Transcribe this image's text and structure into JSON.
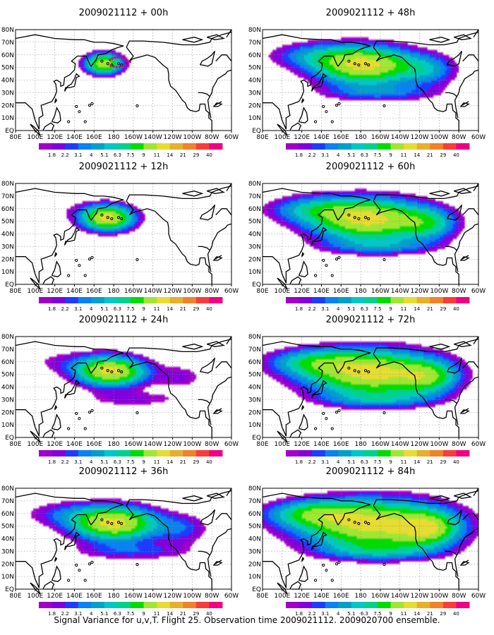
{
  "figure": {
    "caption": "Signal Variance for u,v,T. Flight 25. Observation time 2009021112. 2009020700 ensemble."
  },
  "chart_data": {
    "type": "heatmap",
    "x_ticks": [
      "80E",
      "100E",
      "120E",
      "140E",
      "160E",
      "180",
      "160W",
      "140W",
      "120W",
      "100W",
      "80W",
      "60W"
    ],
    "y_ticks": [
      "EQ",
      "10N",
      "20N",
      "30N",
      "40N",
      "50N",
      "60N",
      "70N",
      "80N"
    ],
    "colorbar": {
      "labels": [
        "1.8",
        "2.2",
        "3.1",
        "4",
        "5.1",
        "6.3",
        "7.5",
        "9",
        "11",
        "14",
        "21",
        "29",
        "40"
      ],
      "colors": [
        "#a000c8",
        "#8200dc",
        "#1e3cff",
        "#0a82f0",
        "#00a0c8",
        "#00c8c8",
        "#00d28c",
        "#00dc00",
        "#a0e632",
        "#e6dc32",
        "#e6af2d",
        "#f08228",
        "#fa3c3c",
        "#f00082"
      ]
    },
    "panels": [
      {
        "title": "2009021112 + 00h",
        "lead_hours": 0,
        "colorbar_labels": [
          "1.8",
          "2.2",
          "3.1",
          "4",
          "5.1",
          "6.3",
          "7.5",
          "9",
          "11",
          "14",
          "21",
          "29",
          "40"
        ]
      },
      {
        "title": "2009021112 + 48h",
        "lead_hours": 48,
        "colorbar_labels": [
          "1.8",
          "2.2",
          "3.1",
          "4",
          "5.1",
          "6.3",
          "7.5",
          "9",
          "11",
          "14",
          "21",
          "29",
          "40"
        ]
      },
      {
        "title": "2009021112 + 12h",
        "lead_hours": 12,
        "colorbar_labels": [
          "1.8",
          "2.2",
          "3.1",
          "4",
          "5.1",
          "6.3",
          "7.5",
          "9",
          "11",
          "14",
          "21",
          "29",
          "40"
        ]
      },
      {
        "title": "2009021112 + 60h",
        "lead_hours": 60,
        "colorbar_labels": [
          "1.8",
          "2.2",
          "3.1",
          "4",
          "5.1",
          "6.3",
          "7.5",
          "9",
          "11",
          "14",
          "21",
          "29",
          "40"
        ]
      },
      {
        "title": "2009021112 + 24h",
        "lead_hours": 24,
        "colorbar_labels": [
          "1.8",
          "2.2",
          "3.1",
          "4",
          "5.1",
          "6.3",
          "7.5",
          "9",
          "11",
          "14",
          "21",
          "29",
          "40"
        ]
      },
      {
        "title": "2009021112 + 72h",
        "lead_hours": 72,
        "colorbar_labels": [
          "1.8",
          "2.2",
          "3.1",
          "4",
          "5.1",
          "6.3",
          "7.5",
          "9",
          "11",
          "14",
          "21",
          "29",
          "40"
        ]
      },
      {
        "title": "2009021112 + 36h",
        "lead_hours": 36,
        "colorbar_labels": [
          "1.8",
          "2.2",
          "3.1",
          "4",
          "5.1",
          "6.3",
          "7.5",
          "9",
          "11",
          "14",
          "21",
          "29",
          "40"
        ]
      },
      {
        "title": "2009021112 + 84h",
        "lead_hours": 84,
        "colorbar_labels": [
          "1.8",
          "2.2",
          "3.1",
          "4",
          "5.1",
          "6.3",
          "7.5",
          "9",
          "11",
          "14",
          "21",
          "29",
          "40"
        ]
      }
    ]
  }
}
